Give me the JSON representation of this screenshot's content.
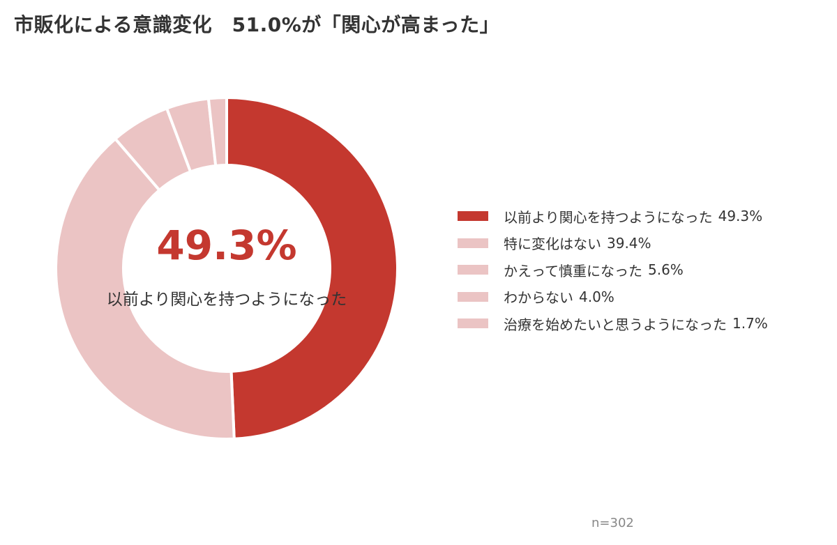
{
  "title": "市販化による意識変化　51.0%が「関心が高まった」",
  "center": {
    "value": "49.3%",
    "label": "以前より関心を持つようになった"
  },
  "sample_size": "n=302",
  "legend": [
    {
      "label": "以前より関心を持つようになった",
      "value": "49.3%",
      "color": "#c4382f"
    },
    {
      "label": "特に変化はない",
      "value": "39.4%",
      "color": "#ebc4c4"
    },
    {
      "label": "かえって慎重になった",
      "value": "5.6%",
      "color": "#ebc4c4"
    },
    {
      "label": "わからない",
      "value": "4.0%",
      "color": "#ebc4c4"
    },
    {
      "label": "治療を始めたいと思うようになった",
      "value": "1.7%",
      "color": "#ebc4c4"
    }
  ],
  "chart_data": {
    "type": "pie",
    "donut": true,
    "title": "市販化による意識変化　51.0%が「関心が高まった」",
    "categories": [
      "以前より関心を持つようになった",
      "特に変化はない",
      "かえって慎重になった",
      "わからない",
      "治療を始めたいと思うようになった"
    ],
    "values": [
      49.3,
      39.4,
      5.6,
      4.0,
      1.7
    ],
    "colors": [
      "#c4382f",
      "#ebc4c4",
      "#ebc4c4",
      "#ebc4c4",
      "#ebc4c4"
    ],
    "legend_position": "right",
    "annotation": "n=302"
  }
}
